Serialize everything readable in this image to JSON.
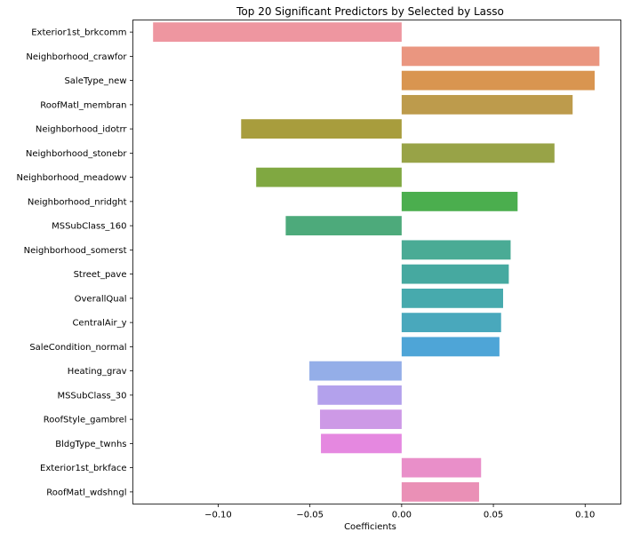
{
  "chart_data": {
    "type": "bar",
    "orientation": "horizontal",
    "title": "Top 20 Significant Predictors by Selected by Lasso",
    "xlabel": "Coefficients",
    "ylabel": "",
    "xlim": [
      -0.1465,
      0.1195
    ],
    "x_ticks": [
      -0.1,
      -0.05,
      0.0,
      0.05,
      0.1
    ],
    "x_tick_labels": [
      "−0.10",
      "−0.05",
      "0.00",
      "0.05",
      "0.10"
    ],
    "grid": false,
    "legend": "none",
    "categories": [
      "Exterior1st_brkcomm",
      "Neighborhood_crawfor",
      "SaleType_new",
      "RoofMatl_membran",
      "Neighborhood_idotrr",
      "Neighborhood_stonebr",
      "Neighborhood_meadowv",
      "Neighborhood_nridght",
      "MSSubClass_160",
      "Neighborhood_somerst",
      "Street_pave",
      "OverallQual",
      "CentralAir_y",
      "SaleCondition_normal",
      "Heating_grav",
      "MSSubClass_30",
      "RoofStyle_gambrel",
      "BldgType_twnhs",
      "Exterior1st_brkface",
      "RoofMatl_wdshngl"
    ],
    "values": [
      -0.1355,
      0.1078,
      0.1052,
      0.0932,
      -0.0875,
      0.0833,
      -0.0793,
      0.0632,
      -0.0632,
      0.0594,
      0.0584,
      0.0553,
      0.0542,
      0.0533,
      -0.0503,
      -0.0458,
      -0.0445,
      -0.044,
      0.0433,
      0.0422
    ],
    "colors": [
      "#ee96a0",
      "#ea9680",
      "#d99550",
      "#bd9b4c",
      "#a89d3d",
      "#98a347",
      "#80a841",
      "#4bae4e",
      "#4daa7b",
      "#4aab95",
      "#46a9a0",
      "#47aaad",
      "#49a8bc",
      "#4ea5d7",
      "#94aee8",
      "#b3a1ec",
      "#cd99e6",
      "#e588e0",
      "#e98fc9",
      "#ea90b6"
    ]
  }
}
